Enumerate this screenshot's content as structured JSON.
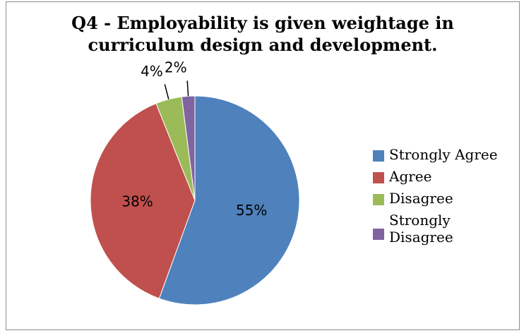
{
  "chart_data": {
    "type": "pie",
    "title_lines": [
      "Q4 - Employability is given weightage in",
      "curriculum design and development."
    ],
    "categories": [
      "Strongly Agree",
      "Agree",
      "Disagree",
      "Strongly Disagree"
    ],
    "values": [
      55,
      38,
      4,
      2
    ],
    "data_labels": [
      "55%",
      "38%",
      "4%",
      "2%"
    ],
    "colors": [
      "#4f81bd",
      "#c0504d",
      "#9bbb59",
      "#8064a2"
    ],
    "legend_position": "right",
    "label_position": "inside for large slices, outside with leader lines for small slices"
  }
}
